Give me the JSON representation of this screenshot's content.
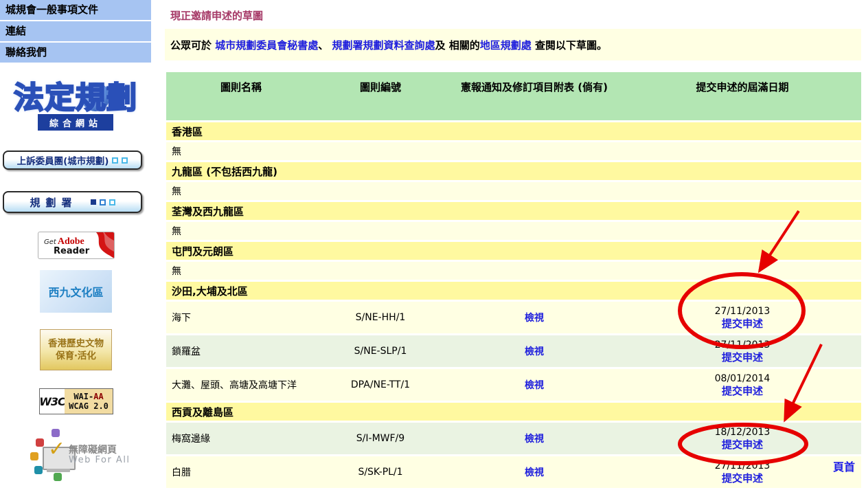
{
  "sidebar": {
    "nav_items": [
      {
        "label": "城規會一般事項文件"
      },
      {
        "label": "連結"
      },
      {
        "label": "聯絡我們"
      }
    ],
    "logo": {
      "title": "法定規劃",
      "subtitle": "綜合網站"
    },
    "appeal_button_label": "上訴委員團(城市規劃)",
    "planning_dept_button_label": "規劃署",
    "badges": {
      "adobe": {
        "get": "Get",
        "adobe": "Adobe",
        "reader": "Reader"
      },
      "wkcd_label": "西九文化區",
      "heritage_line1": "香港歷史文物",
      "heritage_line2": "保育‧活化",
      "w3c": {
        "left": "W3C",
        "wai": "WAI-",
        "aa": "AA",
        "wcag": "WCAG 2.0"
      },
      "web_for_all": {
        "cn": "無障礙網頁",
        "en": "Web For All",
        "icon": "checkmark-monitor-icon"
      }
    }
  },
  "main": {
    "title": "現正邀請申述的草圖",
    "intro": {
      "seg1": "公眾可於 ",
      "link1": "城市規劃委員會秘書處",
      "seg2": "、 ",
      "link2": "規劃署規劃資料查詢處",
      "seg3": "及 相關的",
      "link3": "地區規劃處",
      "seg4": " 查閱以下草圖。"
    },
    "table": {
      "headers": [
        "圖則名稱",
        "圖則編號",
        "憲報通知及修訂項目附表 (倘有)",
        "提交申述的屆滿日期"
      ],
      "rows": [
        {
          "type": "section",
          "name": "香港區"
        },
        {
          "type": "empty",
          "name": "無"
        },
        {
          "type": "section",
          "name": "九龍區 (不包括西九龍)"
        },
        {
          "type": "empty",
          "name": "無"
        },
        {
          "type": "section",
          "name": "荃灣及西九龍區"
        },
        {
          "type": "empty",
          "name": "無"
        },
        {
          "type": "section",
          "name": "屯門及元朗區"
        },
        {
          "type": "empty",
          "name": "無"
        },
        {
          "type": "section",
          "name": "沙田,大埔及北區"
        },
        {
          "type": "plan",
          "shade": "cream",
          "name": "海下",
          "number": "S/NE-HH/1",
          "gazette": "檢視",
          "date": "27/11/2013",
          "submit": "提交申述"
        },
        {
          "type": "plan",
          "shade": "green",
          "name": "鎖羅盆",
          "number": "S/NE-SLP/1",
          "gazette": "檢視",
          "date": "27/11/2013",
          "submit": "提交申述"
        },
        {
          "type": "plan",
          "shade": "cream",
          "name": "大灘、屋頭、高塘及高塘下洋",
          "number": "DPA/NE-TT/1",
          "gazette": "檢視",
          "date": "08/01/2014",
          "submit": "提交申述"
        },
        {
          "type": "section",
          "name": "西貢及離島區"
        },
        {
          "type": "plan",
          "shade": "green",
          "name": "梅窩邊緣",
          "number": "S/I-MWF/9",
          "gazette": "檢視",
          "date": "18/12/2013",
          "submit": "提交申述"
        },
        {
          "type": "plan",
          "shade": "cream",
          "name": "白腊",
          "number": "S/SK-PL/1",
          "gazette": "檢視",
          "date": "27/11/2013",
          "submit": "提交申述"
        }
      ]
    },
    "back_to_top": "頁首"
  },
  "colors": {
    "annotation_red": "#e60000",
    "link_blue": "#2020dd",
    "title_maroon": "#a53866",
    "header_green": "#b3e6b3",
    "section_yellow": "#fff9a0",
    "row_cream": "#ffffe3",
    "row_green": "#eaf3e2",
    "sidebar_blue": "#a6c4f2"
  }
}
